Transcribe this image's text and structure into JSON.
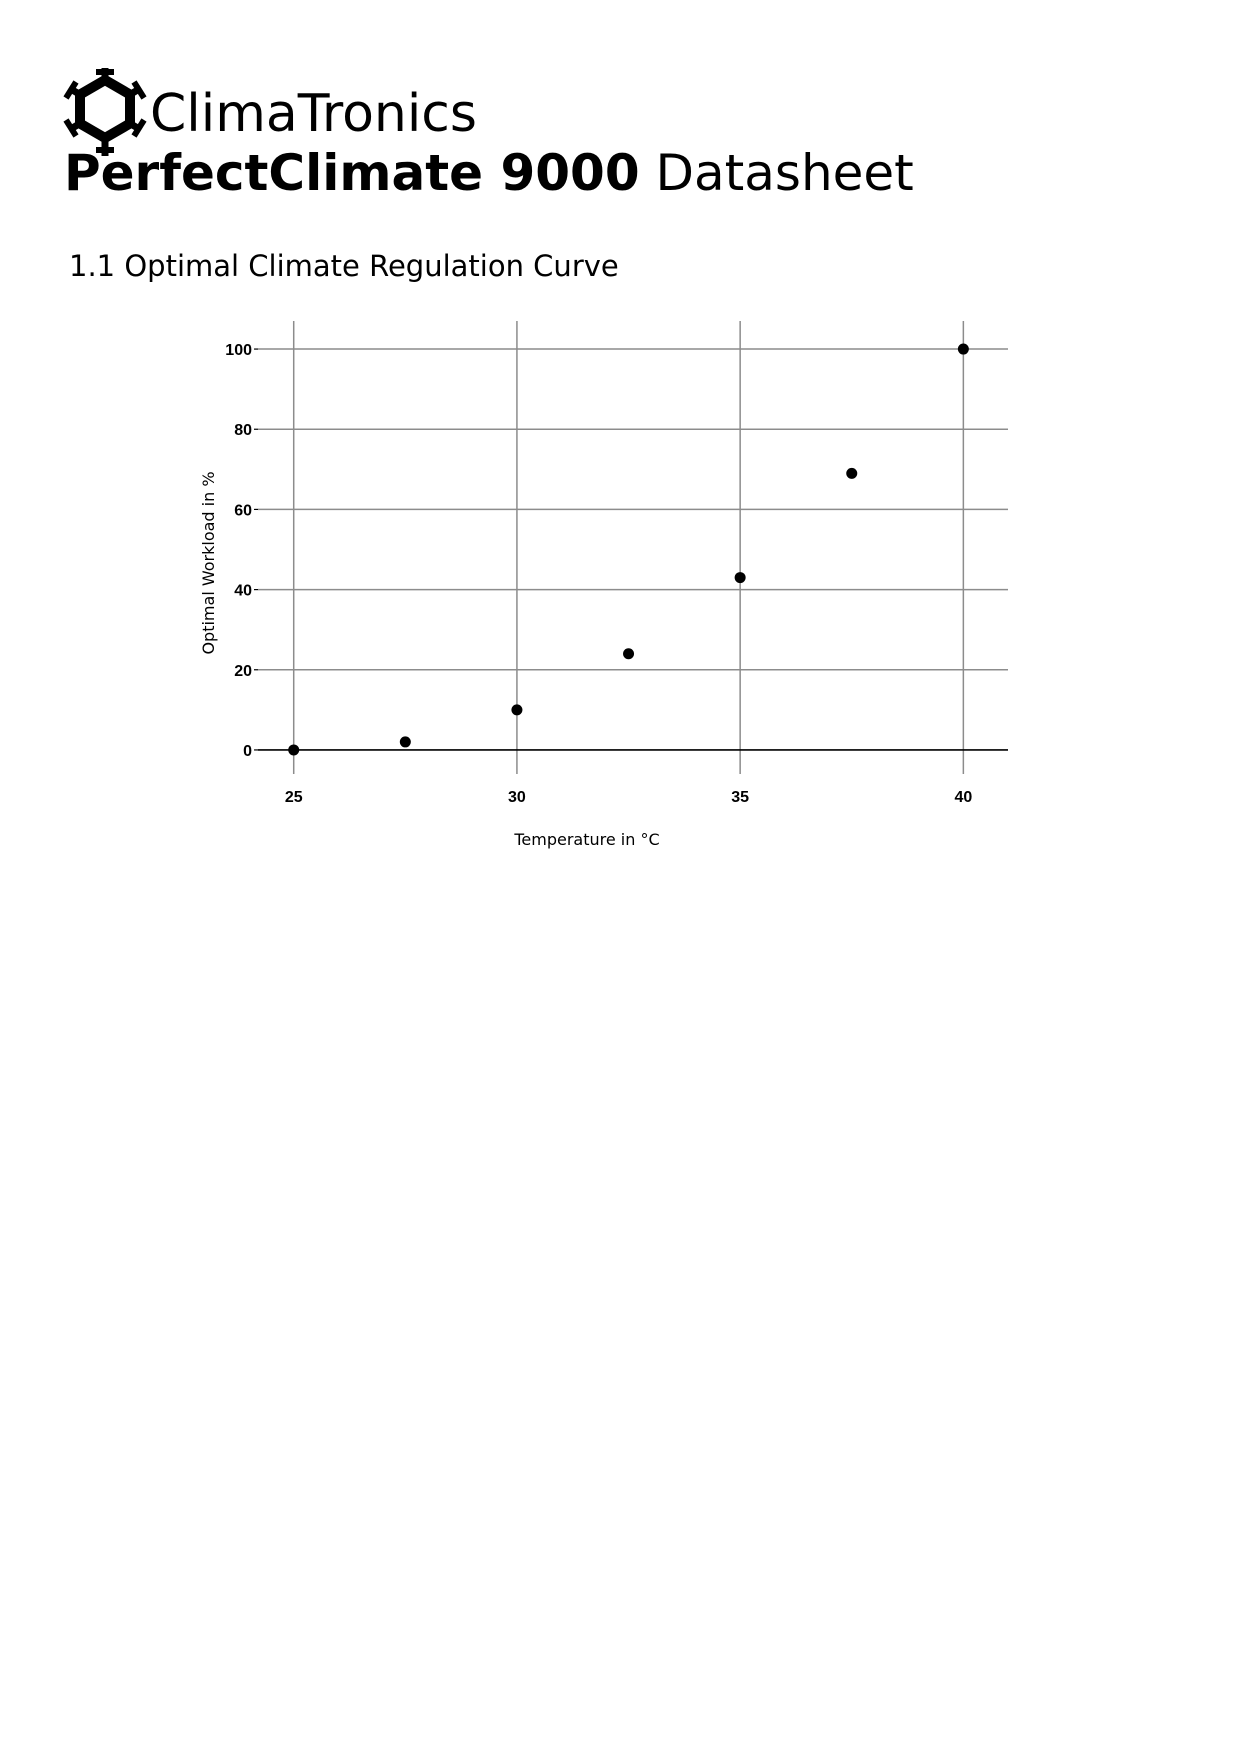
{
  "header": {
    "logo_icon": "snowflake-icon",
    "brand": "ClimaTronics",
    "product_name": "PerfectClimate 9000",
    "doc_type": "Datasheet"
  },
  "section": {
    "title": "1.1 Optimal Climate Regulation Curve"
  },
  "chart_data": {
    "type": "scatter",
    "title": "",
    "xlabel": "Temperature in °C",
    "ylabel": "Optimal Workload in %",
    "xlim": [
      24.2,
      41
    ],
    "ylim": [
      -6,
      107
    ],
    "xticks": [
      25,
      30,
      35,
      40
    ],
    "yticks": [
      0,
      20,
      40,
      60,
      80,
      100
    ],
    "grid": true,
    "legend": "none",
    "marker_color": "#000000",
    "grid_color": "#8c8c8c",
    "x": [
      25,
      27.5,
      30,
      32.5,
      35,
      37.5,
      40
    ],
    "y": [
      0,
      2,
      10,
      24,
      43,
      69,
      100
    ]
  }
}
